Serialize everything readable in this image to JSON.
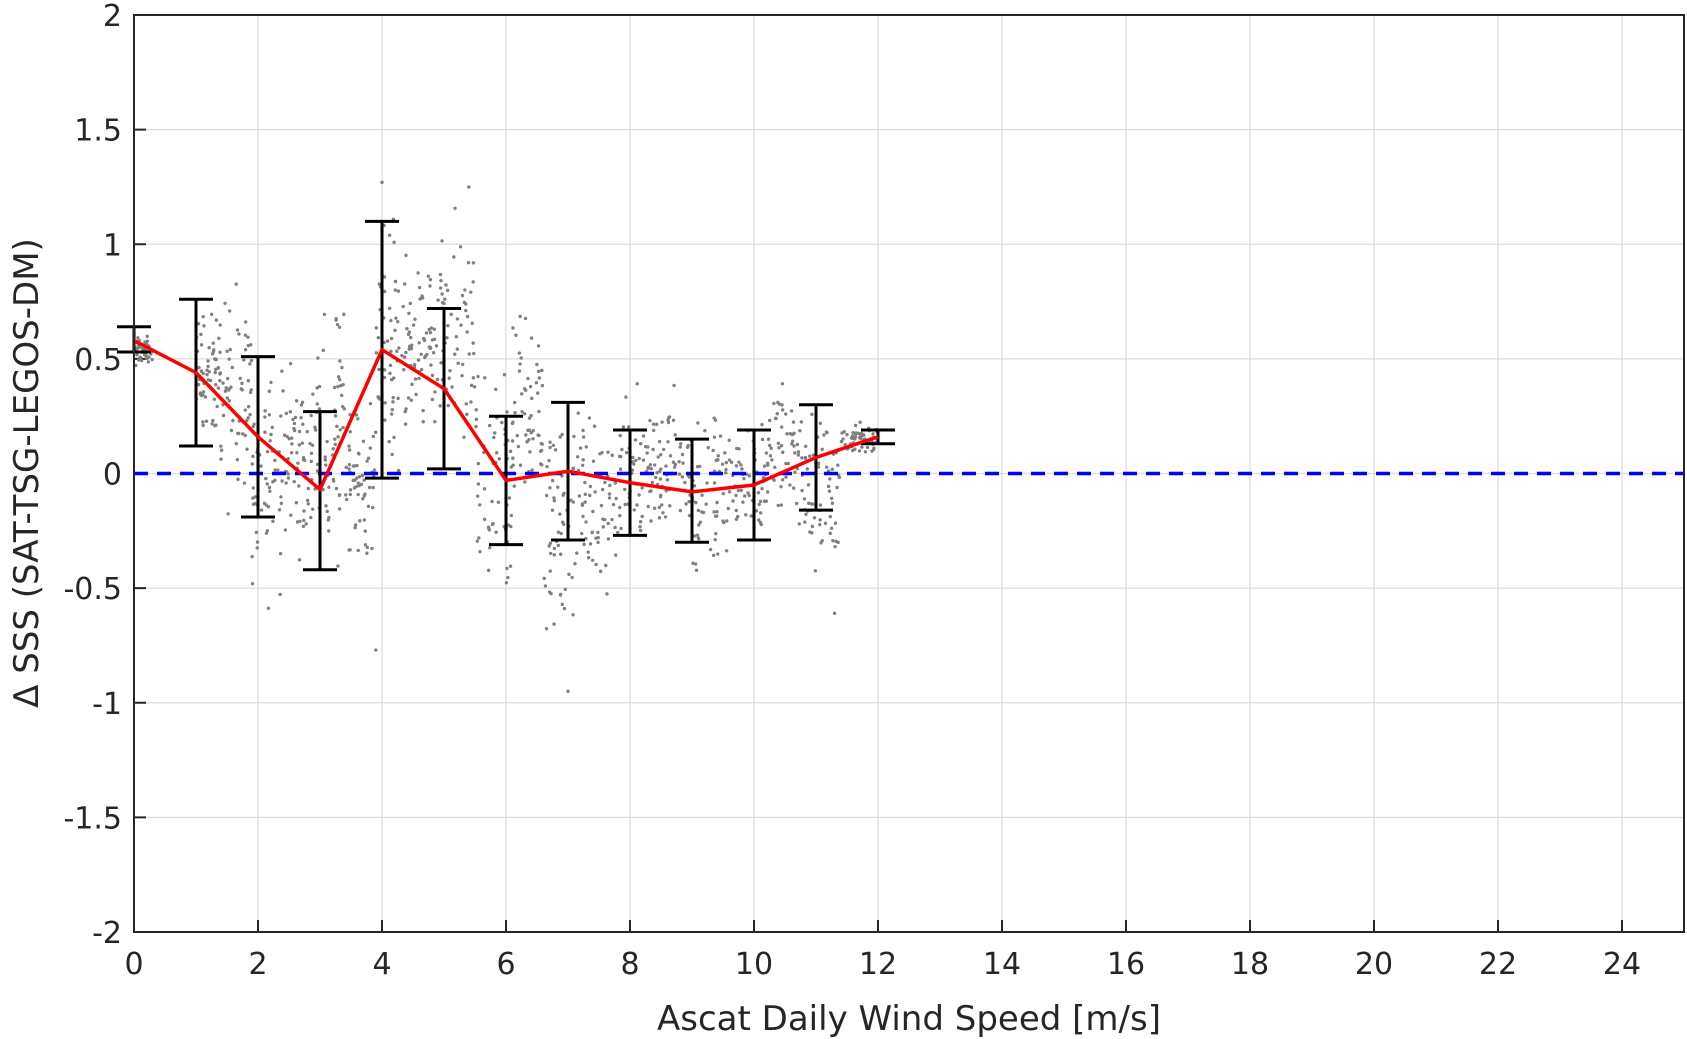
{
  "chart_data": {
    "type": "scatter",
    "xlabel": "Ascat Daily Wind Speed [m/s]",
    "ylabel": "Δ SSS (SAT-TSG-LEGOS-DM)",
    "xlim": [
      0,
      25
    ],
    "ylim": [
      -2,
      2
    ],
    "x_ticks": [
      0,
      2,
      4,
      6,
      8,
      10,
      12,
      14,
      16,
      18,
      20,
      22,
      24
    ],
    "y_ticks": [
      2,
      1.5,
      1,
      0.5,
      0,
      -0.5,
      -1,
      -1.5,
      -2
    ],
    "y_tick_labels": [
      "2",
      "1.5",
      "1",
      "0.5",
      "0",
      "-0.5",
      "-1",
      "-1.5",
      "-2"
    ],
    "grid": true,
    "reference_line": {
      "y": 0,
      "style": "dashed",
      "color": "#0000ff"
    },
    "series": [
      {
        "kind": "mean_line",
        "color": "#ff0000",
        "x": [
          0,
          1,
          2,
          3,
          4,
          5,
          6,
          7,
          8,
          9,
          10,
          11,
          12
        ],
        "y": [
          0.58,
          0.44,
          0.16,
          -0.07,
          0.54,
          0.37,
          -0.03,
          0.01,
          -0.04,
          -0.08,
          -0.05,
          0.07,
          0.16
        ]
      },
      {
        "kind": "error_bars",
        "color": "#000000",
        "x": [
          0,
          1,
          2,
          3,
          4,
          5,
          6,
          7,
          8,
          9,
          10,
          11,
          12
        ],
        "upper": [
          0.64,
          0.76,
          0.51,
          0.27,
          1.1,
          0.72,
          0.25,
          0.31,
          0.19,
          0.15,
          0.19,
          0.3,
          0.19
        ],
        "lower": [
          0.53,
          0.12,
          -0.19,
          -0.42,
          -0.02,
          0.02,
          -0.31,
          -0.29,
          -0.27,
          -0.3,
          -0.29,
          -0.16,
          0.13
        ]
      },
      {
        "kind": "scatter_points",
        "color": "#808080",
        "clusters": [
          {
            "x": [
              0.0,
              0.3
            ],
            "y": [
              0.45,
              0.62
            ]
          },
          {
            "x": [
              1.0,
              1.4
            ],
            "y": [
              0.1,
              0.8
            ]
          },
          {
            "x": [
              1.4,
              1.9
            ],
            "y": [
              -0.3,
              0.95
            ]
          },
          {
            "x": [
              1.9,
              2.4
            ],
            "y": [
              -0.7,
              0.7
            ]
          },
          {
            "x": [
              2.4,
              2.9
            ],
            "y": [
              -0.45,
              0.6
            ]
          },
          {
            "x": [
              2.9,
              3.4
            ],
            "y": [
              -0.55,
              0.97
            ]
          },
          {
            "x": [
              3.4,
              3.9
            ],
            "y": [
              -0.45,
              0.4
            ]
          },
          {
            "x": [
              3.9,
              4.4
            ],
            "y": [
              -0.2,
              1.27
            ]
          },
          {
            "x": [
              4.4,
              4.9
            ],
            "y": [
              0.1,
              1.0
            ]
          },
          {
            "x": [
              4.9,
              5.5
            ],
            "y": [
              -0.1,
              1.25
            ]
          },
          {
            "x": [
              5.5,
              6.1
            ],
            "y": [
              -0.8,
              0.6
            ]
          },
          {
            "x": [
              6.1,
              6.6
            ],
            "y": [
              -0.4,
              0.9
            ]
          },
          {
            "x": [
              6.6,
              7.2
            ],
            "y": [
              -0.95,
              0.5
            ]
          },
          {
            "x": [
              7.2,
              7.8
            ],
            "y": [
              -0.7,
              0.4
            ]
          },
          {
            "x": [
              7.8,
              8.4
            ],
            "y": [
              -0.45,
              0.45
            ]
          },
          {
            "x": [
              8.4,
              9.0
            ],
            "y": [
              -0.4,
              0.45
            ]
          },
          {
            "x": [
              9.0,
              9.6
            ],
            "y": [
              -0.55,
              0.35
            ]
          },
          {
            "x": [
              9.6,
              10.2
            ],
            "y": [
              -0.35,
              0.35
            ]
          },
          {
            "x": [
              10.2,
              10.8
            ],
            "y": [
              -0.35,
              0.56
            ]
          },
          {
            "x": [
              10.8,
              11.4
            ],
            "y": [
              -0.6,
              0.4
            ]
          },
          {
            "x": [
              11.4,
              12.0
            ],
            "y": [
              0.05,
              0.25
            ]
          }
        ],
        "anchors": [
          {
            "x": 4.0,
            "y": 1.27
          },
          {
            "x": 5.4,
            "y": 1.25
          },
          {
            "x": 7.0,
            "y": -0.95
          },
          {
            "x": 3.9,
            "y": -0.77
          },
          {
            "x": 11.3,
            "y": -0.61
          }
        ]
      }
    ]
  }
}
